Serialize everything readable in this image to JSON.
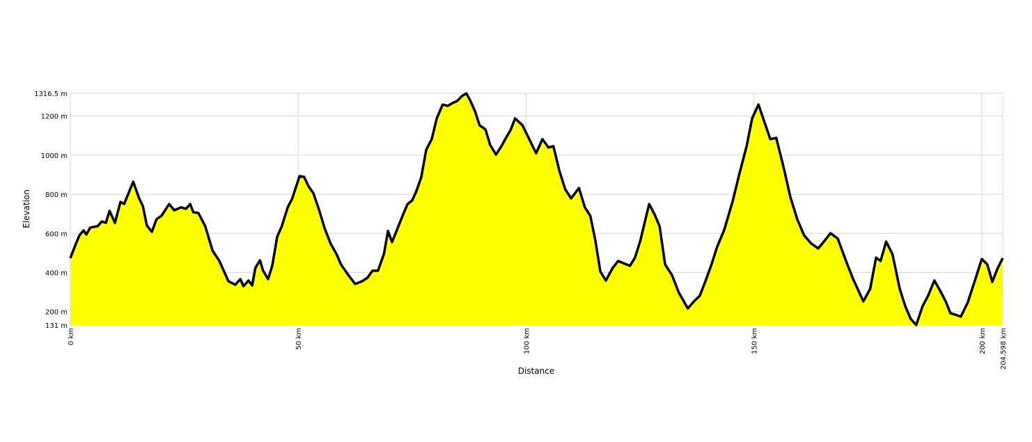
{
  "chart_data": {
    "type": "area",
    "x_label": "Distance",
    "y_label": "Elevation",
    "fill": "#ffff00",
    "line_color": "#000000",
    "grid": true,
    "xlim": [
      0,
      204.598
    ],
    "ylim": [
      131,
      1316.5
    ],
    "xticks": [
      {
        "value": 0,
        "label": "0 km"
      },
      {
        "value": 50,
        "label": "50 km"
      },
      {
        "value": 100,
        "label": "100 km"
      },
      {
        "value": 150,
        "label": "150 km"
      },
      {
        "value": 200,
        "label": "200 km"
      },
      {
        "value": 204.598,
        "label": "204.598 km"
      }
    ],
    "yticks": [
      {
        "value": 131,
        "label": "131 m"
      },
      {
        "value": 200,
        "label": "200 m"
      },
      {
        "value": 400,
        "label": "400 m"
      },
      {
        "value": 600,
        "label": "600 m"
      },
      {
        "value": 800,
        "label": "800 m"
      },
      {
        "value": 1000,
        "label": "1000 m"
      },
      {
        "value": 1200,
        "label": "1200 m"
      },
      {
        "value": 1316.5,
        "label": "1316.5 m"
      }
    ],
    "x": [
      0,
      1.1,
      2,
      2.9,
      3.5,
      4.4,
      6,
      6.9,
      7.8,
      8.6,
      9.8,
      11,
      11.8,
      12.8,
      13.8,
      15.1,
      15.9,
      16.8,
      17.9,
      18.9,
      20,
      21.7,
      22.8,
      24.3,
      25.4,
      26.3,
      27,
      28.1,
      29.6,
      31.2,
      32.7,
      34.7,
      36.2,
      37.3,
      38,
      39.1,
      39.9,
      40.6,
      41.6,
      42.3,
      43.4,
      44.3,
      45.4,
      46.4,
      47.7,
      48.7,
      50.3,
      51.3,
      52.3,
      53.3,
      54.5,
      55.8,
      57.1,
      58.4,
      59.4,
      61,
      62.5,
      64,
      65.2,
      66.3,
      67.5,
      68.8,
      69.7,
      70.6,
      71.7,
      72.9,
      74,
      75,
      75.9,
      77,
      78.1,
      79.3,
      80.4,
      81.7,
      82.8,
      83.9,
      84.9,
      85.9,
      86.9,
      87.8,
      88.8,
      89.8,
      91.1,
      92.1,
      93.4,
      94.6,
      95.6,
      96.6,
      97.6,
      99.2,
      100.7,
      102.2,
      103.6,
      104.9,
      106,
      107.3,
      108.6,
      109.9,
      111.6,
      112.9,
      114.1,
      115.2,
      116.3,
      117.5,
      119,
      120.2,
      121.3,
      122.8,
      123.9,
      125.1,
      127,
      128.2,
      129.3,
      130.5,
      132,
      133.5,
      135.5,
      137,
      138.1,
      139.3,
      140.7,
      141.9,
      143.5,
      145.3,
      146.8,
      148.4,
      149.6,
      151,
      152.3,
      153.6,
      154.9,
      156.5,
      158,
      159.5,
      161,
      162.6,
      164.1,
      165.6,
      166.8,
      168.4,
      170.2,
      171.7,
      174,
      175.5,
      176.8,
      177.8,
      179,
      180.4,
      182,
      183.2,
      184.4,
      185.6,
      187,
      188.2,
      189.6,
      190.8,
      192,
      193.1,
      194.2,
      195.4,
      196.9,
      198.4,
      200,
      201.2,
      202.3,
      203.5,
      204.598
    ],
    "values": [
      473,
      540,
      590,
      615,
      594,
      630,
      637,
      661,
      654,
      715,
      654,
      761,
      750,
      807,
      864,
      779,
      740,
      640,
      608,
      672,
      690,
      750,
      718,
      733,
      726,
      750,
      708,
      704,
      637,
      512,
      459,
      355,
      337,
      366,
      330,
      359,
      334,
      423,
      462,
      409,
      366,
      434,
      583,
      637,
      733,
      779,
      893,
      889,
      839,
      807,
      726,
      626,
      548,
      494,
      441,
      387,
      341,
      355,
      373,
      409,
      409,
      494,
      612,
      555,
      619,
      690,
      750,
      768,
      814,
      886,
      1028,
      1082,
      1188,
      1259,
      1252,
      1267,
      1277,
      1302,
      1316,
      1277,
      1224,
      1153,
      1131,
      1053,
      1003,
      1046,
      1089,
      1128,
      1188,
      1153,
      1082,
      1010,
      1082,
      1039,
      1046,
      921,
      825,
      779,
      832,
      733,
      690,
      565,
      405,
      359,
      423,
      459,
      448,
      434,
      476,
      565,
      750,
      697,
      637,
      441,
      387,
      298,
      216,
      256,
      280,
      352,
      441,
      530,
      619,
      761,
      903,
      1046,
      1188,
      1259,
      1170,
      1082,
      1089,
      939,
      786,
      672,
      590,
      548,
      523,
      565,
      601,
      573,
      459,
      370,
      252,
      316,
      476,
      459,
      558,
      494,
      316,
      227,
      163,
      131,
      227,
      280,
      359,
      309,
      256,
      192,
      184,
      174,
      245,
      352,
      469,
      441,
      352,
      423,
      473
    ]
  }
}
